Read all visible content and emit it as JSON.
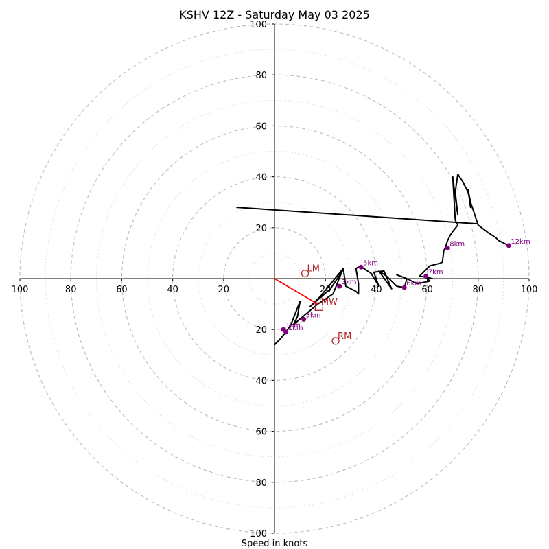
{
  "chart_data": {
    "type": "line",
    "title": "KSHV 12Z - Saturday May 03 2025",
    "xlabel": "Speed in knots",
    "ylabel": "",
    "xlim": [
      -100,
      100
    ],
    "ylim": [
      -100,
      100
    ],
    "rings_major": [
      20,
      40,
      60,
      80,
      100
    ],
    "rings_minor": [
      10,
      30,
      50,
      70,
      90
    ],
    "x_ticks": [
      {
        "value": -100,
        "label": "100"
      },
      {
        "value": -80,
        "label": "80"
      },
      {
        "value": -60,
        "label": "60"
      },
      {
        "value": -40,
        "label": "40"
      },
      {
        "value": -20,
        "label": "20"
      },
      {
        "value": 20,
        "label": "20"
      },
      {
        "value": 40,
        "label": "40"
      },
      {
        "value": 60,
        "label": "60"
      },
      {
        "value": 80,
        "label": "80"
      },
      {
        "value": 100,
        "label": "100"
      }
    ],
    "y_ticks": [
      {
        "value": 100,
        "label": "100"
      },
      {
        "value": 80,
        "label": "80"
      },
      {
        "value": 60,
        "label": "60"
      },
      {
        "value": 40,
        "label": "40"
      },
      {
        "value": 20,
        "label": "20"
      },
      {
        "value": -20,
        "label": "20"
      },
      {
        "value": -40,
        "label": "40"
      },
      {
        "value": -60,
        "label": "60"
      },
      {
        "value": -80,
        "label": "80"
      },
      {
        "value": -100,
        "label": "100"
      }
    ],
    "series": [
      {
        "values": [
          [
            0,
            -26
          ],
          [
            2,
            -24
          ],
          [
            4.5,
            -21
          ],
          [
            6.5,
            -18
          ],
          [
            10,
            -9
          ],
          [
            9,
            -15
          ],
          [
            7.5,
            -18
          ],
          [
            17,
            -10
          ],
          [
            23,
            -6
          ],
          [
            27,
            4
          ],
          [
            18,
            -7
          ],
          [
            14,
            -11
          ],
          [
            22,
            -4
          ],
          [
            26,
            2
          ],
          [
            27,
            4
          ],
          [
            28,
            -3
          ],
          [
            32,
            -5
          ],
          [
            33,
            -6
          ],
          [
            33,
            -2
          ],
          [
            32,
            4
          ],
          [
            33,
            4.5
          ],
          [
            35,
            4
          ],
          [
            38,
            2
          ],
          [
            41,
            -3
          ],
          [
            39,
            2.5
          ],
          [
            43,
            3
          ],
          [
            46,
            -4
          ],
          [
            41,
            3
          ],
          [
            44,
            1
          ],
          [
            48,
            -3
          ],
          [
            51,
            -3.5
          ],
          [
            52,
            0
          ],
          [
            48,
            1.5
          ],
          [
            52,
            0
          ],
          [
            56,
            -2
          ],
          [
            61,
            -1
          ],
          [
            60,
            0
          ],
          [
            62,
            0
          ],
          [
            57,
            1
          ],
          [
            59,
            3
          ],
          [
            61,
            5
          ],
          [
            65,
            6
          ],
          [
            66,
            6.5
          ],
          [
            66,
            7
          ],
          [
            66.5,
            11
          ],
          [
            67,
            12
          ],
          [
            68,
            15
          ],
          [
            69,
            17
          ],
          [
            70,
            18.5
          ],
          [
            72,
            21
          ],
          [
            71,
            23
          ],
          [
            70,
            40
          ],
          [
            71,
            32
          ],
          [
            72,
            25
          ],
          [
            71,
            34
          ],
          [
            72,
            41
          ],
          [
            74,
            38
          ],
          [
            76,
            34
          ],
          [
            77,
            30
          ],
          [
            77,
            28
          ],
          [
            76,
            35
          ],
          [
            77,
            30
          ],
          [
            80,
            21
          ],
          [
            84,
            18
          ],
          [
            87,
            16
          ],
          [
            88,
            15
          ],
          [
            90,
            14
          ],
          [
            92,
            13
          ]
        ]
      },
      {
        "values": [
          [
            -15,
            28
          ],
          [
            80,
            21.5
          ]
        ]
      }
    ],
    "height_markers": [
      {
        "x": 4.5,
        "y": -21,
        "label": "1km"
      },
      {
        "x": 3.5,
        "y": -20,
        "label": "1km"
      },
      {
        "x": 11.5,
        "y": -16,
        "label": "3km"
      },
      {
        "x": 25.5,
        "y": -3,
        "label": "3km"
      },
      {
        "x": 34,
        "y": 4.5,
        "label": "5km"
      },
      {
        "x": 51,
        "y": -3.5,
        "label": "6km"
      },
      {
        "x": 59.5,
        "y": 1,
        "label": "7km"
      },
      {
        "x": 68,
        "y": 12,
        "label": "8km"
      },
      {
        "x": 92,
        "y": 13,
        "label": "12km"
      }
    ],
    "storm_motions": [
      {
        "x": 12,
        "y": 2,
        "label": "LM",
        "shape": "circle"
      },
      {
        "x": 24,
        "y": -24.5,
        "label": "RM",
        "shape": "circle"
      },
      {
        "x": 17.5,
        "y": -11,
        "label": "MW",
        "shape": "square"
      }
    ],
    "motion_vector": {
      "from": [
        0,
        0
      ],
      "to": [
        17,
        -10
      ]
    },
    "colors": {
      "hodograph": "#000000",
      "height_marker": "#800080",
      "storm_motion": "#b22222",
      "motion_vector": "#ff0000",
      "ring_major": "#bfbfbf",
      "ring_minor": "#d0d0d0"
    }
  }
}
